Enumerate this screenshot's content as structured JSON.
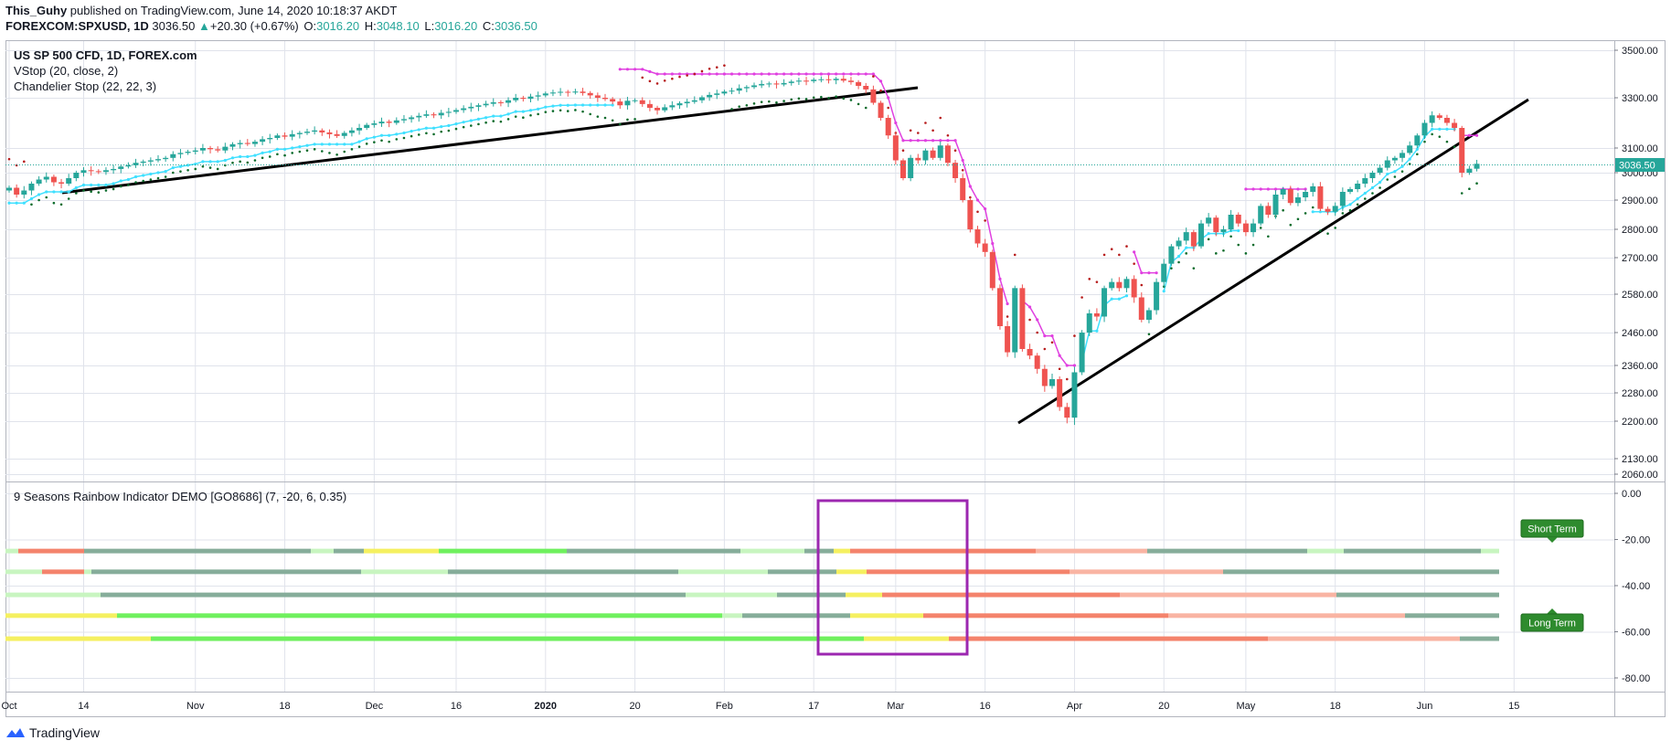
{
  "header": {
    "author": "This_Guhy",
    "published": " published on TradingView.com, June 14, 2020 10:18:37 AKDT",
    "symbol": "FOREXCOM:SPXUSD, 1D",
    "price": "3036.50",
    "change": "+20.30 (+0.67%)",
    "open_label": "O:",
    "open": "3016.20",
    "high_label": "H:",
    "high": "3048.10",
    "low_label": "L:",
    "low": "3016.20",
    "close_label": "C:",
    "close": "3036.50"
  },
  "main_legend": {
    "title": "US SP 500 CFD, 1D, FOREX.com",
    "vstop": "VStop (20, close, 2)",
    "chandelier": "Chandelier Stop (22, 22, 3)"
  },
  "indicator_title": "9 Seasons Rainbow Indicator DEMO [GO8686] (7, -20, 6, 0.35)",
  "labels": {
    "short_term": "Short Term",
    "long_term": "Long Term",
    "last_price": "3036.50"
  },
  "logo_text": "TradingView",
  "colors": {
    "up": "#26a69a",
    "down": "#ef5350",
    "vstop": "#40e0ff",
    "vstop_down": "#e040e0",
    "chandelier": "#0b6b2b",
    "chandelier_down": "#b71c1c",
    "trend": "#000000",
    "box": "#9c27b0"
  },
  "chart_data": {
    "type": "candlestick",
    "price_axis": {
      "range": [
        2020,
        3560
      ],
      "ticks": [
        2060,
        2130,
        2200,
        2280,
        2360,
        2460,
        2580,
        2700,
        2800,
        2900,
        3000,
        3100,
        3300,
        3500
      ],
      "tick_labels": [
        "2060.00",
        "2130.00",
        "2200.00",
        "2280.00",
        "2360.00",
        "2460.00",
        "2580.00",
        "2700.00",
        "2800.00",
        "2900.00",
        "3000.00",
        "3100.00",
        "3300.00",
        "3500.00"
      ]
    },
    "indicator_axis": {
      "range": [
        -90,
        2
      ],
      "ticks": [
        0,
        -20,
        -40,
        -60,
        -80
      ],
      "tick_labels": [
        "0.00",
        "-20.00",
        "-40.00",
        "-60.00",
        "-80.00"
      ]
    },
    "x_labels": [
      "Oct",
      "14",
      "Nov",
      "18",
      "Dec",
      "16",
      "2020",
      "20",
      "Feb",
      "17",
      "Mar",
      "16",
      "Apr",
      "20",
      "May",
      "18",
      "Jun",
      "15"
    ],
    "x_label_days": [
      0,
      10,
      25,
      37,
      49,
      60,
      72,
      84,
      96,
      108,
      119,
      131,
      143,
      155,
      166,
      178,
      190,
      202
    ],
    "close": [
      2945,
      2920,
      2935,
      2960,
      2975,
      2985,
      2965,
      2960,
      2980,
      3000,
      3010,
      3006,
      3003,
      3010,
      3015,
      3025,
      3030,
      3040,
      3045,
      3050,
      3055,
      3060,
      3075,
      3080,
      3085,
      3090,
      3100,
      3095,
      3090,
      3105,
      3115,
      3120,
      3116,
      3125,
      3135,
      3140,
      3150,
      3145,
      3155,
      3160,
      3165,
      3170,
      3162,
      3155,
      3148,
      3160,
      3170,
      3180,
      3192,
      3198,
      3205,
      3200,
      3210,
      3215,
      3222,
      3228,
      3234,
      3230,
      3240,
      3244,
      3251,
      3258,
      3264,
      3270,
      3276,
      3282,
      3280,
      3290,
      3300,
      3296,
      3305,
      3310,
      3318,
      3322,
      3325,
      3322,
      3326,
      3320,
      3310,
      3300,
      3295,
      3285,
      3270,
      3288,
      3290,
      3275,
      3260,
      3250,
      3262,
      3270,
      3278,
      3284,
      3290,
      3302,
      3312,
      3318,
      3326,
      3330,
      3340,
      3345,
      3352,
      3358,
      3360,
      3356,
      3362,
      3368,
      3372,
      3370,
      3376,
      3378,
      3374,
      3380,
      3372,
      3366,
      3350,
      3335,
      3280,
      3220,
      3150,
      3050,
      2980,
      3060,
      3050,
      3090,
      3060,
      3110,
      3040,
      2980,
      2900,
      2800,
      2750,
      2720,
      2600,
      2480,
      2400,
      2600,
      2410,
      2390,
      2350,
      2300,
      2320,
      2240,
      2210,
      2340,
      2460,
      2520,
      2510,
      2600,
      2620,
      2600,
      2630,
      2570,
      2500,
      2530,
      2620,
      2680,
      2740,
      2760,
      2790,
      2740,
      2820,
      2840,
      2790,
      2800,
      2850,
      2820,
      2790,
      2820,
      2880,
      2850,
      2920,
      2940,
      2890,
      2910,
      2930,
      2950,
      2870,
      2860,
      2880,
      2930,
      2940,
      2960,
      2980,
      3000,
      3020,
      3050,
      3060,
      3080,
      3110,
      3150,
      3200,
      3230,
      3220,
      3200,
      3180,
      3000,
      3016,
      3036
    ]
  }
}
